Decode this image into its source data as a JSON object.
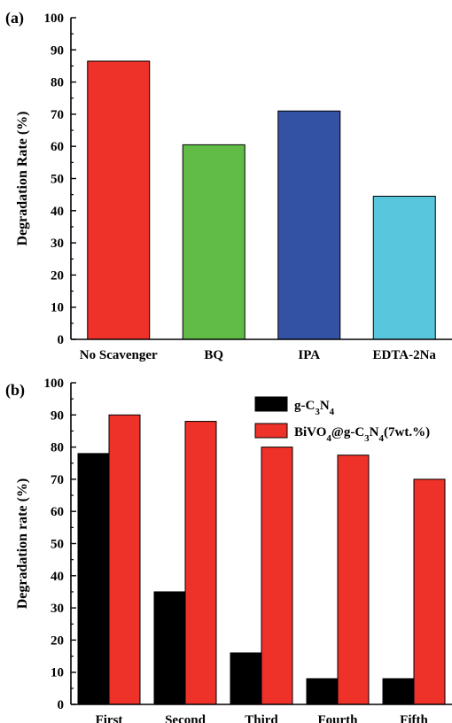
{
  "chart_data": [
    {
      "type": "bar",
      "panel_label": "(a)",
      "categories": [
        "No Scavenger",
        "BQ",
        "IPA",
        "EDTA-2Na"
      ],
      "series": [
        {
          "values": [
            86.5,
            60.5,
            71.0,
            44.5
          ]
        }
      ],
      "bar_colors": [
        "#ee3129",
        "#60bb47",
        "#3352a3",
        "#58c6dc"
      ],
      "title": "",
      "xlabel": "",
      "ylabel": "Degradation Rate (%)",
      "ylim": [
        0,
        100
      ],
      "yticks": [
        0,
        10,
        20,
        30,
        40,
        50,
        60,
        70,
        80,
        90,
        100
      ],
      "grid": false,
      "legend": null
    },
    {
      "type": "bar",
      "panel_label": "(b)",
      "categories": [
        "First",
        "Second",
        "Third",
        "Fourth",
        "Fifth"
      ],
      "series": [
        {
          "name": "g-C3N4",
          "name_base": "g-C",
          "name_sub1": "3",
          "name_mid": "N",
          "name_sub2": "4",
          "name_tail": "",
          "color": "#000000",
          "values": [
            78.0,
            35.0,
            16.0,
            8.0,
            8.0
          ]
        },
        {
          "name": "BiVO4@g-C3N4(7wt.%)",
          "name_base": "BiVO",
          "name_sub0": "4",
          "name_at": "@g-C",
          "name_sub1": "3",
          "name_mid": "N",
          "name_sub2": "4",
          "name_tail": "(7wt.%)",
          "color": "#ee3129",
          "values": [
            90.0,
            88.0,
            80.0,
            77.5,
            70.0
          ]
        }
      ],
      "title": "",
      "xlabel": "",
      "ylabel": "Degradation rate (%)",
      "ylim": [
        0,
        100
      ],
      "yticks": [
        0,
        10,
        20,
        30,
        40,
        50,
        60,
        70,
        80,
        90,
        100
      ],
      "grid": false,
      "legend": "top-right"
    }
  ]
}
